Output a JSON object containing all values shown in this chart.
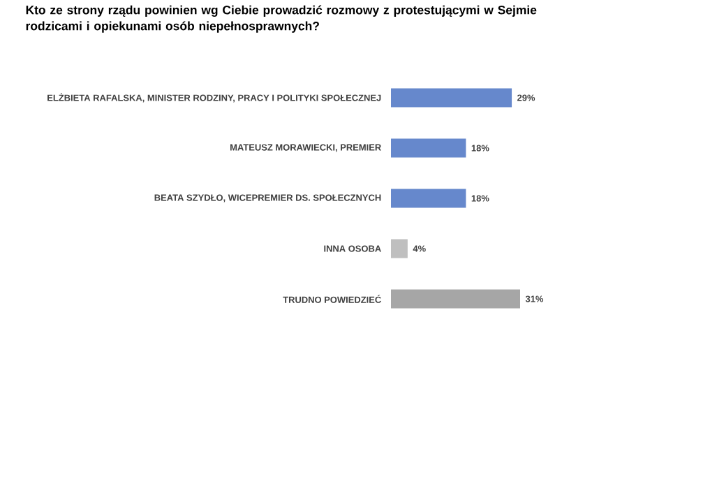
{
  "chart_data": {
    "type": "bar",
    "orientation": "horizontal",
    "title": "Kto ze strony rządu powinien wg Ciebie prowadzić rozmowy z protestującymi w Sejmie rodzicami i opiekunami osób niepełnosprawnych?",
    "categories": [
      "ELŻBIETA RAFALSKA, MINISTER RODZINY, PRACY I POLITYKI SPOŁECZNEJ",
      "MATEUSZ MORAWIECKI, PREMIER",
      "BEATA SZYDŁO, WICEPREMIER DS. SPOŁECZNYCH",
      "INNA OSOBA",
      "TRUDNO POWIEDZIEĆ"
    ],
    "values": [
      29,
      18,
      18,
      4,
      31
    ],
    "colors": [
      "#6688cc",
      "#6688cc",
      "#6688cc",
      "#bfbfbf",
      "#a6a6a6"
    ],
    "value_labels": [
      "29%",
      "18%",
      "18%",
      "4%",
      "31%"
    ]
  }
}
